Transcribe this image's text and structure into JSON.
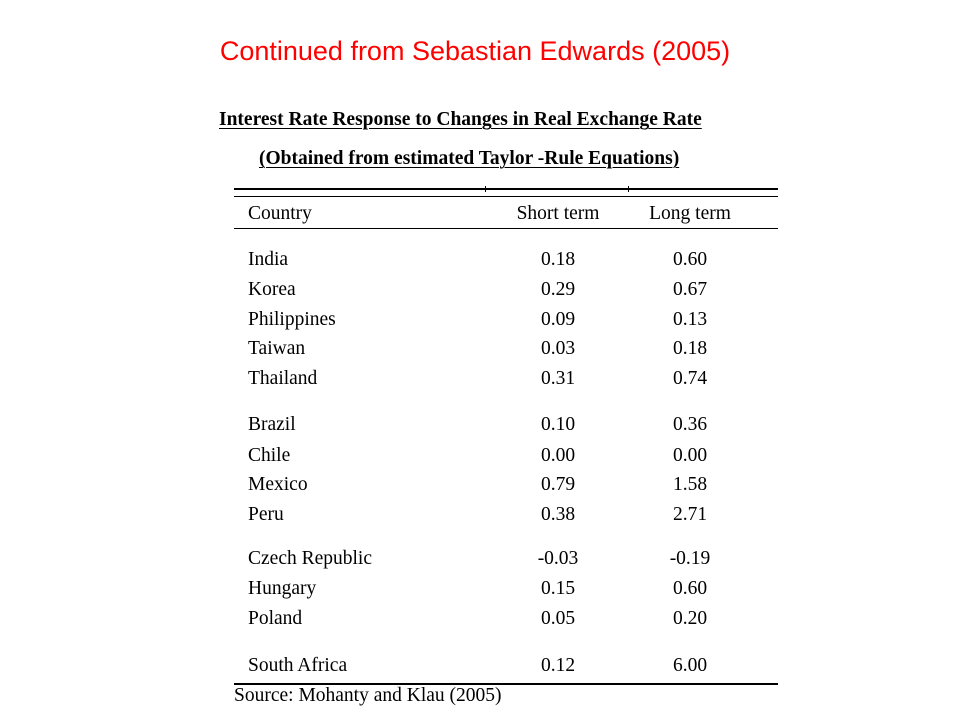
{
  "slide": {
    "title": "Continued from Sebastian Edwards (2005)"
  },
  "table": {
    "caption_line1": "Interest Rate Response to Changes in Real Exchange Rate",
    "caption_line2": "(Obtained from estimated Taylor -Rule Equations)",
    "headers": [
      "Country",
      "Short term",
      "Long term"
    ],
    "groups": [
      [
        {
          "country": "India",
          "short": "0.18",
          "long": "0.60"
        },
        {
          "country": "Korea",
          "short": "0.29",
          "long": "0.67"
        },
        {
          "country": "Philippines",
          "short": "0.09",
          "long": "0.13"
        },
        {
          "country": "Taiwan",
          "short": "0.03",
          "long": "0.18"
        },
        {
          "country": "Thailand",
          "short": "0.31",
          "long": "0.74"
        }
      ],
      [
        {
          "country": "Brazil",
          "short": "0.10",
          "long": "0.36"
        },
        {
          "country": "Chile",
          "short": "0.00",
          "long": "0.00"
        },
        {
          "country": "Mexico",
          "short": "0.79",
          "long": "1.58"
        },
        {
          "country": "Peru",
          "short": "0.38",
          "long": "2.71"
        }
      ],
      [
        {
          "country": "Czech Republic",
          "short": "-0.03",
          "long": "-0.19"
        },
        {
          "country": "Hungary",
          "short": "0.15",
          "long": "0.60"
        },
        {
          "country": "Poland",
          "short": "0.05",
          "long": "0.20"
        }
      ],
      [
        {
          "country": "South Africa",
          "short": "0.12",
          "long": "6.00"
        }
      ]
    ],
    "source": "Source: Mohanty and Klau (2005)"
  }
}
